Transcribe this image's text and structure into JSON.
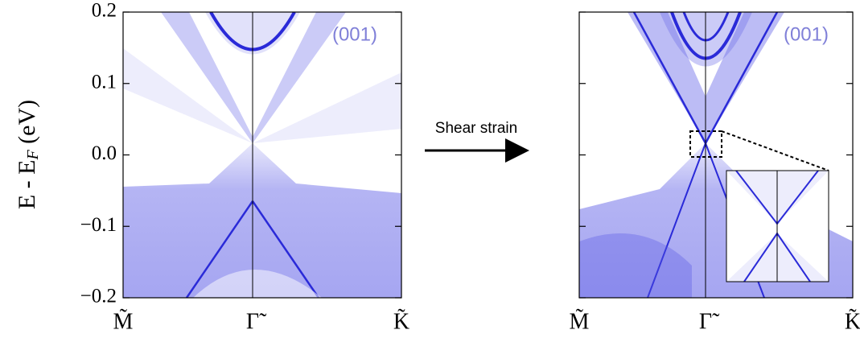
{
  "chart_data": [
    {
      "type": "spectral",
      "y_label": [
        "E - E",
        "F",
        " (eV)"
      ],
      "annotation": "(001)",
      "categories": [
        "M̃",
        "Γ̃",
        "K̃"
      ],
      "ylim": [
        -0.2,
        0.2
      ],
      "yticks": [
        {
          "value": 0.2,
          "label": "0.2"
        },
        0.1,
        {
          "value": 0.0,
          "label": "0.0"
        },
        {
          "value": -0.1,
          "label": "−0.1"
        },
        {
          "value": -0.2,
          "label": "−0.2"
        }
      ],
      "color": "#3a3ae0"
    },
    {
      "type": "spectral",
      "annotation": "(001)",
      "categories": [
        "M̃",
        "Γ̃",
        "K̃"
      ],
      "ylim": [
        -0.2,
        0.2
      ],
      "color": "#3a3ae0"
    }
  ],
  "arrow_label": "Shear strain"
}
